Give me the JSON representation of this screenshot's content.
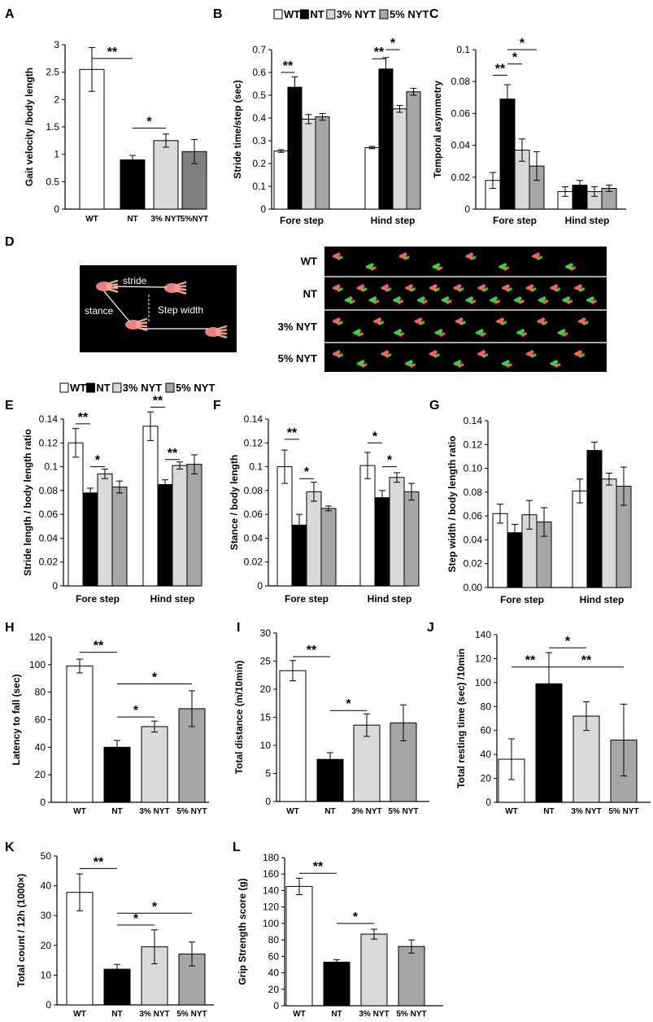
{
  "colors": {
    "WT": "#ffffff",
    "NT": "#000000",
    "3% NYT": "#d9d9d9",
    "5% NYT": "#a6a6a6",
    "5%NYT": "#808080"
  },
  "legend": {
    "entries": [
      "WT",
      "NT",
      "3% NYT",
      "5% NYT"
    ]
  },
  "panel_d": {
    "letter": "D",
    "schematic": {
      "stride": "stride",
      "stance": "stance",
      "step_width": "Step width"
    },
    "track_labels": [
      "WT",
      "NT",
      "3% NYT",
      "5% NYT"
    ],
    "track_paw_counts": [
      8,
      22,
      13,
      11
    ]
  },
  "chart_data": [
    {
      "id": "A",
      "type": "bar",
      "ylabel": "Gait velocity /body length",
      "ylim": [
        0,
        3
      ],
      "yticks": [
        "0",
        "0.5",
        "1",
        "1.5",
        "2",
        "2.5",
        "3"
      ],
      "categories": [
        "WT",
        "NT",
        "3% NYT",
        "5%NYT"
      ],
      "series": [
        {
          "name": "",
          "values": [
            2.55,
            0.9,
            1.25,
            1.05
          ],
          "errors": [
            0.4,
            0.08,
            0.12,
            0.22
          ]
        }
      ],
      "annotations": [
        {
          "text": "**",
          "from": "WT",
          "to": "NT",
          "y": 2.75
        },
        {
          "text": "*",
          "from": "NT",
          "to": "3% NYT",
          "y": 1.48
        }
      ]
    },
    {
      "id": "B",
      "type": "bar",
      "ylabel": "Stride time/step (sec)",
      "ylim": [
        0,
        0.7
      ],
      "yticks": [
        "0",
        "0.1",
        "0.2",
        "0.3",
        "0.4",
        "0.5",
        "0.6",
        "0.7"
      ],
      "categories": [
        "Fore step",
        "Hind step"
      ],
      "series": [
        {
          "name": "WT",
          "values": [
            0.255,
            0.27
          ],
          "errors": [
            0.006,
            0.005
          ]
        },
        {
          "name": "NT",
          "values": [
            0.535,
            0.615
          ],
          "errors": [
            0.045,
            0.05
          ]
        },
        {
          "name": "3% NYT",
          "values": [
            0.395,
            0.44
          ],
          "errors": [
            0.02,
            0.015
          ]
        },
        {
          "name": "5% NYT",
          "values": [
            0.405,
            0.515
          ],
          "errors": [
            0.015,
            0.015
          ]
        }
      ],
      "annotations": [
        {
          "text": "**",
          "group": 0,
          "from": 0,
          "to": 1,
          "y": 0.6
        },
        {
          "text": "**",
          "group": 1,
          "from": 0,
          "to": 1,
          "y": 0.66
        },
        {
          "text": "*",
          "group": 1,
          "from": 1,
          "to": 2,
          "y": 0.7
        }
      ]
    },
    {
      "id": "C",
      "type": "bar",
      "ylabel": "Temporal asymmetry",
      "ylim": [
        0,
        0.1
      ],
      "yticks": [
        "0",
        "0.02",
        "0.04",
        "0.06",
        "0.08",
        "0.1"
      ],
      "categories": [
        "Fore step",
        "Hind step"
      ],
      "series": [
        {
          "name": "WT",
          "values": [
            0.018,
            0.011
          ],
          "errors": [
            0.005,
            0.003
          ]
        },
        {
          "name": "NT",
          "values": [
            0.069,
            0.015
          ],
          "errors": [
            0.009,
            0.003
          ]
        },
        {
          "name": "3% NYT",
          "values": [
            0.037,
            0.011
          ],
          "errors": [
            0.007,
            0.003
          ]
        },
        {
          "name": "5% NYT",
          "values": [
            0.027,
            0.013
          ],
          "errors": [
            0.009,
            0.002
          ]
        }
      ],
      "annotations": [
        {
          "text": "**",
          "group": 0,
          "from": 0,
          "to": 1,
          "y": 0.084
        },
        {
          "text": "*",
          "group": 0,
          "from": 1,
          "to": 2,
          "y": 0.091
        },
        {
          "text": "*",
          "group": 0,
          "from": 1,
          "to": 3,
          "y": 0.1
        }
      ]
    },
    {
      "id": "E",
      "type": "bar",
      "ylabel": "Stride length / body length ratio",
      "ylim": [
        0,
        0.14
      ],
      "yticks": [
        "0",
        "0.02",
        "0.04",
        "0.06",
        "0.08",
        "0.1",
        "0.12",
        "0.14"
      ],
      "categories": [
        "Fore step",
        "Hind step"
      ],
      "series": [
        {
          "name": "WT",
          "values": [
            0.12,
            0.134
          ],
          "errors": [
            0.012,
            0.012
          ]
        },
        {
          "name": "NT",
          "values": [
            0.078,
            0.085
          ],
          "errors": [
            0.004,
            0.004
          ]
        },
        {
          "name": "3% NYT",
          "values": [
            0.094,
            0.101
          ],
          "errors": [
            0.004,
            0.003
          ]
        },
        {
          "name": "5% NYT",
          "values": [
            0.083,
            0.102
          ],
          "errors": [
            0.005,
            0.008
          ]
        }
      ],
      "annotations": [
        {
          "text": "**",
          "group": 0,
          "from": 0,
          "to": 1,
          "y": 0.136
        },
        {
          "text": "*",
          "group": 0,
          "from": 1,
          "to": 2,
          "y": 0.1
        },
        {
          "text": "**",
          "group": 1,
          "from": 0,
          "to": 1,
          "y": 0.15
        },
        {
          "text": "**",
          "group": 1,
          "from": 1,
          "to": 2,
          "y": 0.106
        }
      ]
    },
    {
      "id": "F",
      "type": "bar",
      "ylabel": "Stance / body length",
      "ylim": [
        0,
        0.14
      ],
      "yticks": [
        "0",
        "0.02",
        "0.04",
        "0.06",
        "0.08",
        "0.1",
        "0.12",
        "0.14"
      ],
      "categories": [
        "Fore step",
        "Hind step"
      ],
      "series": [
        {
          "name": "WT",
          "values": [
            0.1,
            0.101
          ],
          "errors": [
            0.014,
            0.011
          ]
        },
        {
          "name": "NT",
          "values": [
            0.051,
            0.074
          ],
          "errors": [
            0.009,
            0.006
          ]
        },
        {
          "name": "3% NYT",
          "values": [
            0.079,
            0.091
          ],
          "errors": [
            0.008,
            0.004
          ]
        },
        {
          "name": "5% NYT",
          "values": [
            0.065,
            0.079
          ],
          "errors": [
            0.002,
            0.007
          ]
        }
      ],
      "annotations": [
        {
          "text": "**",
          "group": 0,
          "from": 0,
          "to": 1,
          "y": 0.123
        },
        {
          "text": "*",
          "group": 0,
          "from": 1,
          "to": 2,
          "y": 0.09
        },
        {
          "text": "*",
          "group": 1,
          "from": 0,
          "to": 1,
          "y": 0.12
        },
        {
          "text": "*",
          "group": 1,
          "from": 1,
          "to": 2,
          "y": 0.1
        }
      ]
    },
    {
      "id": "G",
      "type": "bar",
      "ylabel": "Step width / body length ratio",
      "ylim": [
        0,
        0.14
      ],
      "yticks": [
        "0.00",
        "0.02",
        "0.04",
        "0.06",
        "0.08",
        "0.10",
        "0.12",
        "0.14"
      ],
      "categories": [
        "Fore step",
        "Hind step"
      ],
      "series": [
        {
          "name": "WT",
          "values": [
            0.062,
            0.081
          ],
          "errors": [
            0.008,
            0.01
          ]
        },
        {
          "name": "NT",
          "values": [
            0.046,
            0.115
          ],
          "errors": [
            0.007,
            0.007
          ]
        },
        {
          "name": "3% NYT",
          "values": [
            0.061,
            0.091
          ],
          "errors": [
            0.012,
            0.005
          ]
        },
        {
          "name": "5% NYT",
          "values": [
            0.055,
            0.085
          ],
          "errors": [
            0.012,
            0.016
          ]
        }
      ],
      "annotations": []
    },
    {
      "id": "H",
      "type": "bar",
      "ylabel": "Latency to fall (sec)",
      "ylim": [
        0,
        120
      ],
      "yticks": [
        "0",
        "20",
        "40",
        "60",
        "80",
        "100",
        "120"
      ],
      "categories": [
        "WT",
        "NT",
        "3% NYT",
        "5% NYT"
      ],
      "series": [
        {
          "name": "",
          "values": [
            99,
            40,
            55,
            68
          ],
          "errors": [
            5,
            5,
            4,
            13
          ]
        }
      ],
      "annotations": [
        {
          "text": "**",
          "from": "WT",
          "to": "NT",
          "y": 109
        },
        {
          "text": "*",
          "from": "NT",
          "to": "3% NYT",
          "y": 62
        },
        {
          "text": "*",
          "from": "NT",
          "to": "5% NYT",
          "y": 86
        }
      ]
    },
    {
      "id": "I",
      "type": "bar",
      "ylabel": "Total distance (m/10min)",
      "ylim": [
        0,
        30
      ],
      "yticks": [
        "0",
        "5",
        "10",
        "15",
        "20",
        "25",
        "30"
      ],
      "categories": [
        "WT",
        "NT",
        "3% NYT",
        "5% NYT"
      ],
      "series": [
        {
          "name": "",
          "values": [
            23.3,
            7.5,
            13.6,
            14
          ],
          "errors": [
            1.8,
            1.2,
            2,
            3.2
          ]
        }
      ],
      "annotations": [
        {
          "text": "**",
          "from": "WT",
          "to": "NT",
          "y": 25.8
        },
        {
          "text": "*",
          "from": "NT",
          "to": "3% NYT",
          "y": 16.2
        }
      ]
    },
    {
      "id": "J",
      "type": "bar",
      "ylabel": "Total resting time (sec) /10min",
      "ylim": [
        0,
        140
      ],
      "yticks": [
        "0",
        "20",
        "40",
        "60",
        "80",
        "100",
        "120",
        "140"
      ],
      "categories": [
        "WT",
        "NT",
        "3% NYT",
        "5% NYT"
      ],
      "series": [
        {
          "name": "",
          "values": [
            36,
            99,
            72,
            52
          ],
          "errors": [
            17,
            26,
            12,
            30
          ]
        }
      ],
      "annotations": [
        {
          "text": "**",
          "from": "WT",
          "to": "NT",
          "y": 113
        },
        {
          "text": "*",
          "from": "NT",
          "to": "3% NYT",
          "y": 129
        },
        {
          "text": "**",
          "from": "NT",
          "to": "5% NYT",
          "y": 113
        }
      ]
    },
    {
      "id": "K",
      "type": "bar",
      "ylabel": "Total count / 12h (1000×)",
      "ylim": [
        0,
        50
      ],
      "yticks": [
        "0",
        "10",
        "20",
        "30",
        "40",
        "50"
      ],
      "categories": [
        "WT",
        "NT",
        "3% NYT",
        "5% NYT"
      ],
      "series": [
        {
          "name": "",
          "values": [
            37.8,
            12,
            19.5,
            17.1
          ],
          "errors": [
            6.2,
            1.6,
            5.7,
            4
          ]
        }
      ],
      "annotations": [
        {
          "text": "**",
          "from": "WT",
          "to": "NT",
          "y": 45.8
        },
        {
          "text": "*",
          "from": "NT",
          "to": "3% NYT",
          "y": 26.8
        },
        {
          "text": "*",
          "from": "NT",
          "to": "5% NYT",
          "y": 30.8
        }
      ]
    },
    {
      "id": "L",
      "type": "bar",
      "ylabel": "Grip Strength score (g)",
      "ylim": [
        0,
        180
      ],
      "yticks": [
        "0",
        "20",
        "40",
        "60",
        "80",
        "100",
        "120",
        "140",
        "160",
        "180"
      ],
      "categories": [
        "WT",
        "NT",
        "3% NYT",
        "5% NYT"
      ],
      "series": [
        {
          "name": "",
          "values": [
            145,
            53,
            87,
            72
          ],
          "errors": [
            10,
            3,
            6,
            8
          ]
        }
      ],
      "annotations": [
        {
          "text": "**",
          "from": "WT",
          "to": "NT",
          "y": 161
        },
        {
          "text": "*",
          "from": "NT",
          "to": "3% NYT",
          "y": 100
        }
      ]
    }
  ]
}
